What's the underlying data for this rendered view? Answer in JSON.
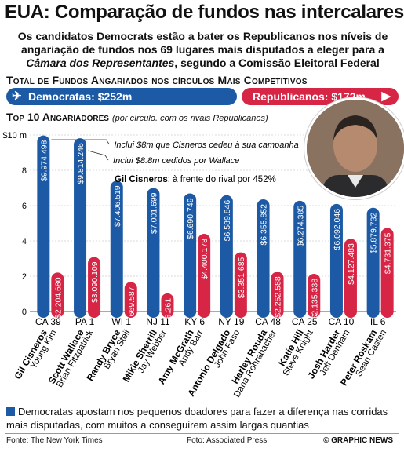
{
  "title": "EUA: Comparação de fundos nas intercalares",
  "subtitle_line1": "Os candidatos Democrats estão a bater os Republicanos nos níveis de",
  "subtitle_line2": "angariação de fundos nos 69 lugares mais disputados a eleger para a",
  "subtitle_line3_italic": "Câmara dos Representantes",
  "subtitle_line3_rest": ", segundo a Comissão Eleitoral Federal",
  "totals_heading": "Total de Fundos Angariados nos círculos Mais Competitivos",
  "totals": {
    "dem_label": "Democratas: $252m",
    "rep_label": "Republicanos: $172m",
    "dem_value_m": 252,
    "rep_value_m": 172,
    "dem_color": "#1d5aa5",
    "rep_color": "#d62545"
  },
  "top10_heading": "Top 10 Angariadores",
  "top10_sub": "(por círculo. com os rivais Republicanos)",
  "annotations": {
    "note1": "Inclui $8m que Cisneros cedeu à sua campanha",
    "note2": "Inclui $8.8m cedidos por Wallace",
    "callout_name": "Gil Cisneros",
    "callout_text": ": à frente do rival por 452%"
  },
  "chart_data": {
    "type": "bar",
    "ylim": [
      0,
      10
    ],
    "yticks": [
      "0",
      "2",
      "4",
      "6",
      "8",
      "$10 m"
    ],
    "districts": [
      "CA 39",
      "PA 1",
      "WI 1",
      "NJ 11",
      "KY 6",
      "NY 19",
      "CA 48",
      "CA 25",
      "CA 10",
      "IL 6"
    ],
    "dem_names": [
      "Gil Cisneros",
      "Scott Wallace",
      "Randy Bryce",
      "Mikie Sherrill",
      "Amy McGrath",
      "Antonio Delgado",
      "Harley Rouda",
      "Katie Hill",
      "Josh Harder",
      "Peter Roskam"
    ],
    "rep_names": [
      "Young Kim",
      "Brian Fitzpatrick",
      "Bryan Steil",
      "Jay Webber",
      "Andy Barr",
      "John Faso",
      "Dana Rohrabacher",
      "Steve Knight",
      "Jeff Denham",
      "Sean Casten"
    ],
    "series": [
      {
        "values": [
          9.974498,
          9.814246,
          7.406519,
          7.001699,
          6.690749,
          6.589846,
          6.355852,
          6.274385,
          6.092046,
          5.879732
        ],
        "labels": [
          "$9.974.498",
          "$9.814.246",
          "$7.406.519",
          "$7.001.699",
          "$6.690.749",
          "$6.589.846",
          "$6.355.852",
          "$6.274.385",
          "$6.092.046",
          "$5.879.732"
        ],
        "color": "#1d5aa5"
      },
      {
        "values": [
          2.20468,
          3.090109,
          1.669587,
          1.028261,
          4.400178,
          3.351685,
          2.252588,
          2.135338,
          4.127483,
          4.731375
        ],
        "labels": [
          "$2.204.680",
          "$3.090.109",
          "$1.669.587",
          "$1.028.261",
          "$4.400.178",
          "$3.351.685",
          "$2.252.588",
          "$2.135.338",
          "$4.127.483",
          "$4.731.375"
        ],
        "color": "#d62545"
      }
    ]
  },
  "footer_note": "Democratas apostam nos pequenos doadores para fazer a diferença nas corridas mais disputadas, com muitos a conseguirem assim largas quantias",
  "source": "Fonte: The New York Times",
  "photo_credit": "Foto: Associated Press",
  "brand": "© GRAPHIC NEWS"
}
